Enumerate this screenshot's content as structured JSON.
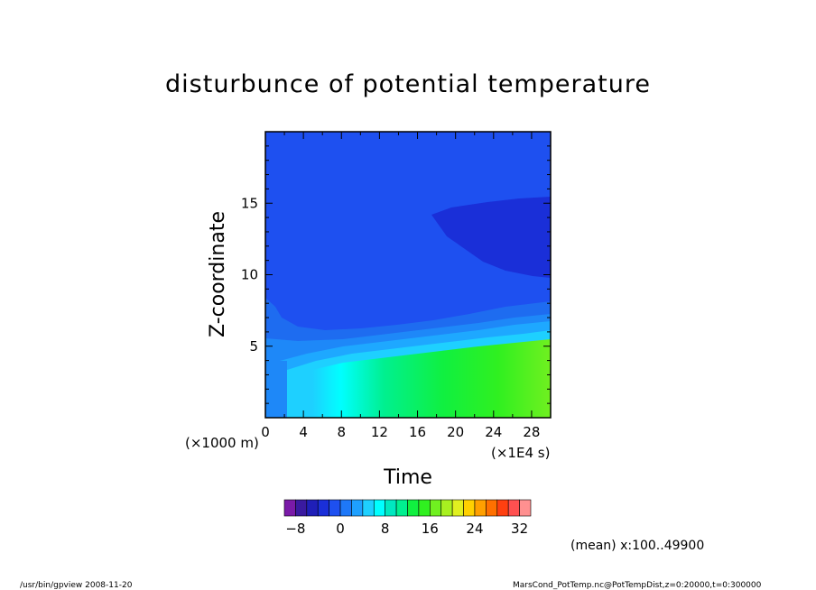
{
  "chart_data": {
    "type": "heatmap",
    "title": "disturbunce of potential temperature",
    "xlabel": "Time",
    "ylabel": "Z-coordinate",
    "x_unit": "(×1E4 s)",
    "y_unit": "(×1000 m)",
    "xlim": [
      0,
      30
    ],
    "ylim": [
      0,
      20
    ],
    "x_ticks": [
      0,
      4,
      8,
      12,
      16,
      20,
      24,
      28
    ],
    "y_ticks": [
      5,
      10,
      15
    ],
    "colorbar": {
      "levels": [
        -8,
        -6,
        -4,
        -2,
        0,
        2,
        4,
        6,
        8,
        10,
        12,
        14,
        16,
        18,
        20,
        22,
        24,
        26,
        28,
        30,
        32
      ],
      "tick_labels": [
        -8,
        0,
        8,
        16,
        24,
        32
      ],
      "colors": [
        "#7a1aa8",
        "#3a1aa0",
        "#1f1fb8",
        "#1a2fd8",
        "#1e50f0",
        "#1e78f8",
        "#1ea0ff",
        "#1ed0ff",
        "#00ffff",
        "#00e8c0",
        "#00f090",
        "#10f040",
        "#30f020",
        "#70f020",
        "#a8f020",
        "#e0f020",
        "#ffd000",
        "#ffa000",
        "#ff7000",
        "#ff4010",
        "#ff5050",
        "#ff9090"
      ]
    },
    "annotation": "(mean) x:100..49900"
  },
  "footer": {
    "left": "/usr/bin/gpview   2008-11-20",
    "right": "MarsCond_PotTemp.nc@PotTempDist,z=0:20000,t=0:300000"
  }
}
